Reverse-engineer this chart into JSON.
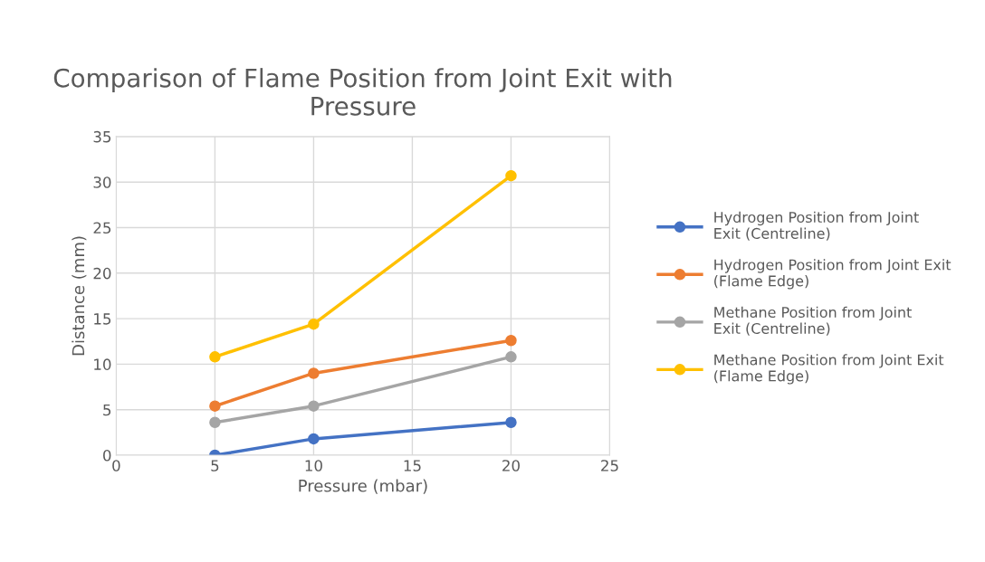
{
  "chart_data": {
    "type": "line",
    "title": "Comparison of Flame Position from Joint Exit with Pressure",
    "xlabel": "Pressure (mbar)",
    "ylabel": "Distance (mm)",
    "x": [
      5,
      10,
      20
    ],
    "series": [
      {
        "name": "Hydrogen Position from Joint Exit (Centreline)",
        "color": "#4472c4",
        "values": [
          0,
          1.8,
          3.6
        ]
      },
      {
        "name": "Hydrogen Position from Joint Exit (Flame Edge)",
        "color": "#ed7d31",
        "values": [
          5.4,
          9.0,
          12.6
        ]
      },
      {
        "name": "Methane Position from Joint Exit (Centreline)",
        "color": "#a5a5a5",
        "values": [
          3.6,
          5.4,
          10.8
        ]
      },
      {
        "name": "Methane Position from Joint Exit (Flame Edge)",
        "color": "#ffc000",
        "values": [
          10.8,
          14.4,
          30.7
        ]
      }
    ],
    "xlim": [
      0,
      25
    ],
    "xticks": [
      0,
      5,
      10,
      15,
      20,
      25
    ],
    "ylim": [
      0,
      35
    ],
    "yticks": [
      0,
      5,
      10,
      15,
      20,
      25,
      30,
      35
    ],
    "grid": true,
    "legend": "right",
    "marker": "circle",
    "line_style": "solid"
  }
}
